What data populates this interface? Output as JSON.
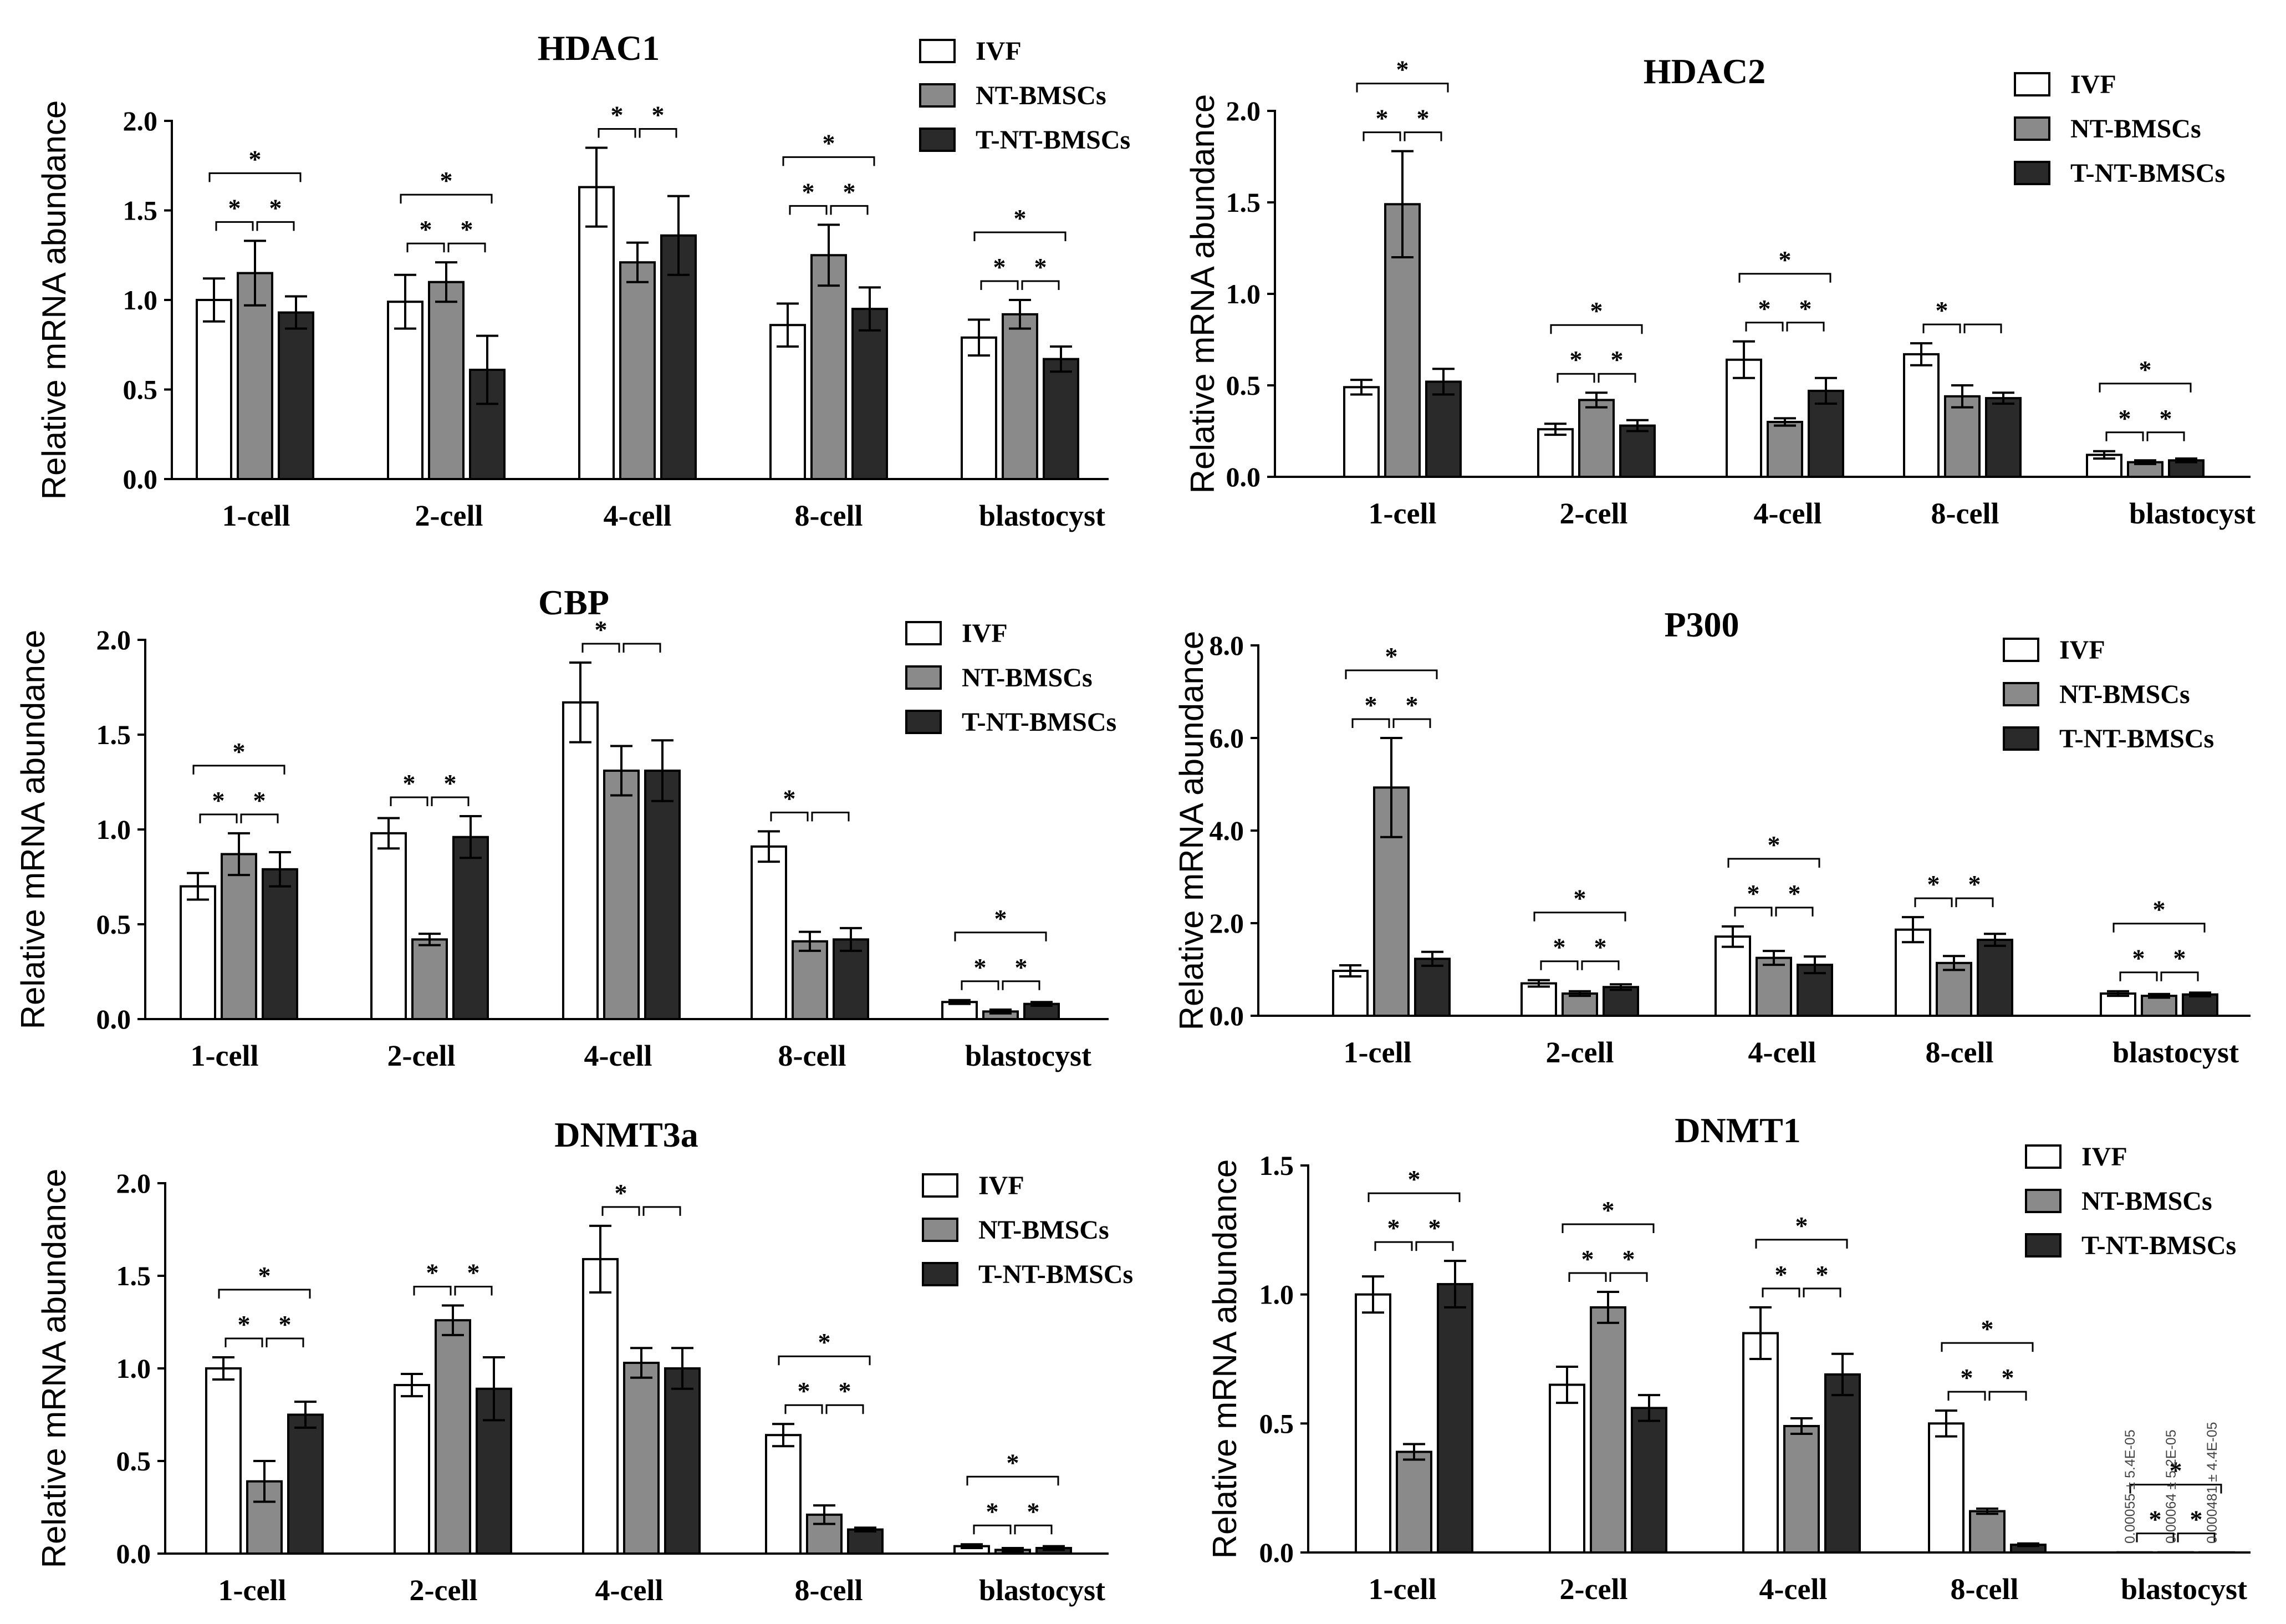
{
  "legend": [
    "IVF",
    "NT-BMSCs",
    "T-NT-BMSCs"
  ],
  "colors": {
    "IVF": "#ffffff",
    "NT-BMSCs": "#8a8a8a",
    "T-NT-BMSCs": "#2a2a2a",
    "axis": "#000000"
  },
  "categories": [
    "1-cell",
    "2-cell",
    "4-cell",
    "8-cell",
    "blastocyst"
  ],
  "ylabel": "Relative mRNA abundance",
  "chart_data": [
    {
      "type": "bar",
      "title": "HDAC1",
      "ylim": [
        0,
        2.0
      ],
      "yticks": [
        "0.0",
        "0.5",
        "1.0",
        "1.5",
        "2.0"
      ],
      "ytick_values": [
        0,
        0.5,
        1.0,
        1.5,
        2.0
      ],
      "series": [
        {
          "name": "IVF",
          "values": [
            1.0,
            0.99,
            1.63,
            0.86,
            0.79
          ],
          "errors": [
            0.12,
            0.15,
            0.22,
            0.12,
            0.1
          ]
        },
        {
          "name": "NT-BMSCs",
          "values": [
            1.15,
            1.1,
            1.21,
            1.25,
            0.92
          ],
          "errors": [
            0.18,
            0.11,
            0.11,
            0.17,
            0.08
          ]
        },
        {
          "name": "T-NT-BMSCs",
          "values": [
            0.93,
            0.61,
            1.36,
            0.95,
            0.67
          ],
          "errors": [
            0.09,
            0.19,
            0.22,
            0.12,
            0.07
          ]
        }
      ],
      "significance": [
        {
          "category": "1-cell",
          "pairs": [
            [
              "IVF",
              "NT-BMSCs",
              "*"
            ],
            [
              "NT-BMSCs",
              "T-NT-BMSCs",
              "*"
            ],
            [
              "IVF",
              "T-NT-BMSCs",
              "*"
            ]
          ]
        },
        {
          "category": "2-cell",
          "pairs": [
            [
              "IVF",
              "NT-BMSCs",
              "*"
            ],
            [
              "NT-BMSCs",
              "T-NT-BMSCs",
              "*"
            ],
            [
              "IVF",
              "T-NT-BMSCs",
              "*"
            ]
          ]
        },
        {
          "category": "4-cell",
          "pairs": [
            [
              "IVF",
              "NT-BMSCs",
              "*"
            ],
            [
              "NT-BMSCs",
              "T-NT-BMSCs",
              "*"
            ]
          ]
        },
        {
          "category": "8-cell",
          "pairs": [
            [
              "IVF",
              "NT-BMSCs",
              "*"
            ],
            [
              "NT-BMSCs",
              "T-NT-BMSCs",
              "*"
            ],
            [
              "IVF",
              "T-NT-BMSCs",
              "*"
            ]
          ]
        },
        {
          "category": "blastocyst",
          "pairs": [
            [
              "IVF",
              "NT-BMSCs",
              "*"
            ],
            [
              "NT-BMSCs",
              "T-NT-BMSCs",
              "*"
            ],
            [
              "IVF",
              "T-NT-BMSCs",
              "*"
            ]
          ]
        }
      ]
    },
    {
      "type": "bar",
      "title": "HDAC2",
      "ylim": [
        0,
        2.0
      ],
      "yticks": [
        "0.0",
        "0.5",
        "1.0",
        "1.5",
        "2.0"
      ],
      "ytick_values": [
        0,
        0.5,
        1.0,
        1.5,
        2.0
      ],
      "series": [
        {
          "name": "IVF",
          "values": [
            0.49,
            0.26,
            0.64,
            0.67,
            0.12
          ],
          "errors": [
            0.04,
            0.03,
            0.1,
            0.06,
            0.02
          ]
        },
        {
          "name": "NT-BMSCs",
          "values": [
            1.49,
            0.42,
            0.3,
            0.44,
            0.08
          ],
          "errors": [
            0.29,
            0.04,
            0.02,
            0.06,
            0.01
          ]
        },
        {
          "name": "T-NT-BMSCs",
          "values": [
            0.52,
            0.28,
            0.47,
            0.43,
            0.09
          ],
          "errors": [
            0.07,
            0.03,
            0.07,
            0.03,
            0.01
          ]
        }
      ],
      "significance": [
        {
          "category": "1-cell",
          "pairs": [
            [
              "IVF",
              "NT-BMSCs",
              "*"
            ],
            [
              "NT-BMSCs",
              "T-NT-BMSCs",
              "*"
            ],
            [
              "IVF",
              "T-NT-BMSCs",
              "*"
            ]
          ]
        },
        {
          "category": "2-cell",
          "pairs": [
            [
              "IVF",
              "NT-BMSCs",
              "*"
            ],
            [
              "NT-BMSCs",
              "T-NT-BMSCs",
              "*"
            ],
            [
              "IVF",
              "T-NT-BMSCs",
              "*"
            ]
          ]
        },
        {
          "category": "4-cell",
          "pairs": [
            [
              "IVF",
              "NT-BMSCs",
              "*"
            ],
            [
              "NT-BMSCs",
              "T-NT-BMSCs",
              "*"
            ],
            [
              "IVF",
              "T-NT-BMSCs",
              "*"
            ]
          ]
        },
        {
          "category": "8-cell",
          "pairs": [
            [
              "NT-BMSCs",
              "T-NT-BMSCs",
              ""
            ],
            [
              "IVF",
              "NT-BMSCs",
              "*"
            ]
          ]
        },
        {
          "category": "blastocyst",
          "pairs": [
            [
              "IVF",
              "NT-BMSCs",
              "*"
            ],
            [
              "NT-BMSCs",
              "T-NT-BMSCs",
              "*"
            ],
            [
              "IVF",
              "T-NT-BMSCs",
              "*"
            ]
          ]
        }
      ]
    },
    {
      "type": "bar",
      "title": "CBP",
      "ylim": [
        0,
        2.0
      ],
      "yticks": [
        "0.0",
        "0.5",
        "1.0",
        "1.5",
        "2.0"
      ],
      "ytick_values": [
        0,
        0.5,
        1.0,
        1.5,
        2.0
      ],
      "series": [
        {
          "name": "IVF",
          "values": [
            0.7,
            0.98,
            1.67,
            0.91,
            0.09
          ],
          "errors": [
            0.07,
            0.08,
            0.21,
            0.08,
            0.01
          ]
        },
        {
          "name": "NT-BMSCs",
          "values": [
            0.87,
            0.42,
            1.31,
            0.41,
            0.04
          ],
          "errors": [
            0.11,
            0.03,
            0.13,
            0.05,
            0.01
          ]
        },
        {
          "name": "T-NT-BMSCs",
          "values": [
            0.79,
            0.96,
            1.31,
            0.42,
            0.08
          ],
          "errors": [
            0.09,
            0.11,
            0.16,
            0.06,
            0.01
          ]
        }
      ],
      "significance": [
        {
          "category": "1-cell",
          "pairs": [
            [
              "IVF",
              "NT-BMSCs",
              "*"
            ],
            [
              "NT-BMSCs",
              "T-NT-BMSCs",
              "*"
            ],
            [
              "IVF",
              "T-NT-BMSCs",
              "*"
            ]
          ]
        },
        {
          "category": "2-cell",
          "pairs": [
            [
              "IVF",
              "NT-BMSCs",
              "*"
            ],
            [
              "NT-BMSCs",
              "T-NT-BMSCs",
              "*"
            ]
          ]
        },
        {
          "category": "4-cell",
          "pairs": [
            [
              "IVF",
              "NT-BMSCs",
              "*"
            ],
            [
              "NT-BMSCs",
              "T-NT-BMSCs",
              ""
            ]
          ]
        },
        {
          "category": "8-cell",
          "pairs": [
            [
              "IVF",
              "NT-BMSCs",
              "*"
            ],
            [
              "NT-BMSCs",
              "T-NT-BMSCs",
              ""
            ]
          ]
        },
        {
          "category": "blastocyst",
          "pairs": [
            [
              "IVF",
              "NT-BMSCs",
              "*"
            ],
            [
              "NT-BMSCs",
              "T-NT-BMSCs",
              "*"
            ],
            [
              "IVF",
              "T-NT-BMSCs",
              "*"
            ]
          ]
        }
      ]
    },
    {
      "type": "bar",
      "title": "P300",
      "ylim": [
        0,
        8.0
      ],
      "yticks": [
        "0.0",
        "2.0",
        "4.0",
        "6.0",
        "8.0"
      ],
      "ytick_values": [
        0,
        2.0,
        4.0,
        6.0,
        8.0
      ],
      "series": [
        {
          "name": "IVF",
          "values": [
            0.97,
            0.7,
            1.71,
            1.86,
            0.48
          ],
          "errors": [
            0.12,
            0.07,
            0.22,
            0.27,
            0.05
          ]
        },
        {
          "name": "NT-BMSCs",
          "values": [
            4.93,
            0.48,
            1.25,
            1.14,
            0.43
          ],
          "errors": [
            1.07,
            0.05,
            0.15,
            0.15,
            0.04
          ]
        },
        {
          "name": "T-NT-BMSCs",
          "values": [
            1.23,
            0.62,
            1.1,
            1.64,
            0.46
          ],
          "errors": [
            0.15,
            0.06,
            0.18,
            0.13,
            0.04
          ]
        }
      ],
      "significance": [
        {
          "category": "1-cell",
          "pairs": [
            [
              "IVF",
              "NT-BMSCs",
              "*"
            ],
            [
              "NT-BMSCs",
              "T-NT-BMSCs",
              "*"
            ],
            [
              "IVF",
              "T-NT-BMSCs",
              "*"
            ]
          ]
        },
        {
          "category": "2-cell",
          "pairs": [
            [
              "IVF",
              "NT-BMSCs",
              "*"
            ],
            [
              "NT-BMSCs",
              "T-NT-BMSCs",
              "*"
            ],
            [
              "IVF",
              "T-NT-BMSCs",
              "*"
            ]
          ]
        },
        {
          "category": "4-cell",
          "pairs": [
            [
              "IVF",
              "NT-BMSCs",
              "*"
            ],
            [
              "NT-BMSCs",
              "T-NT-BMSCs",
              "*"
            ],
            [
              "IVF",
              "T-NT-BMSCs",
              "*"
            ]
          ]
        },
        {
          "category": "8-cell",
          "pairs": [
            [
              "IVF",
              "NT-BMSCs",
              "*"
            ],
            [
              "NT-BMSCs",
              "T-NT-BMSCs",
              "*"
            ]
          ]
        },
        {
          "category": "blastocyst",
          "pairs": [
            [
              "IVF",
              "NT-BMSCs",
              "*"
            ],
            [
              "NT-BMSCs",
              "T-NT-BMSCs",
              "*"
            ],
            [
              "IVF",
              "T-NT-BMSCs",
              "*"
            ]
          ]
        }
      ]
    },
    {
      "type": "bar",
      "title": "DNMT3a",
      "ylim": [
        0,
        2.0
      ],
      "yticks": [
        "0.0",
        "0.5",
        "1.0",
        "1.5",
        "2.0"
      ],
      "ytick_values": [
        0,
        0.5,
        1.0,
        1.5,
        2.0
      ],
      "series": [
        {
          "name": "IVF",
          "values": [
            1.0,
            0.91,
            1.59,
            0.64,
            0.04
          ],
          "errors": [
            0.06,
            0.06,
            0.18,
            0.06,
            0.01
          ]
        },
        {
          "name": "NT-BMSCs",
          "values": [
            0.39,
            1.26,
            1.03,
            0.21,
            0.02
          ],
          "errors": [
            0.11,
            0.08,
            0.08,
            0.05,
            0.01
          ]
        },
        {
          "name": "T-NT-BMSCs",
          "values": [
            0.75,
            0.89,
            1.0,
            0.13,
            0.03
          ],
          "errors": [
            0.07,
            0.17,
            0.11,
            0.01,
            0.01
          ]
        }
      ],
      "significance": [
        {
          "category": "1-cell",
          "pairs": [
            [
              "IVF",
              "NT-BMSCs",
              "*"
            ],
            [
              "NT-BMSCs",
              "T-NT-BMSCs",
              "*"
            ],
            [
              "IVF",
              "T-NT-BMSCs",
              "*"
            ]
          ]
        },
        {
          "category": "2-cell",
          "pairs": [
            [
              "IVF",
              "NT-BMSCs",
              "*"
            ],
            [
              "NT-BMSCs",
              "T-NT-BMSCs",
              "*"
            ]
          ]
        },
        {
          "category": "4-cell",
          "pairs": [
            [
              "IVF",
              "NT-BMSCs",
              "*"
            ],
            [
              "NT-BMSCs",
              "T-NT-BMSCs",
              ""
            ]
          ]
        },
        {
          "category": "8-cell",
          "pairs": [
            [
              "IVF",
              "NT-BMSCs",
              "*"
            ],
            [
              "NT-BMSCs",
              "T-NT-BMSCs",
              "*"
            ],
            [
              "IVF",
              "T-NT-BMSCs",
              "*"
            ]
          ]
        },
        {
          "category": "blastocyst",
          "pairs": [
            [
              "IVF",
              "NT-BMSCs",
              "*"
            ],
            [
              "NT-BMSCs",
              "T-NT-BMSCs",
              "*"
            ],
            [
              "IVF",
              "T-NT-BMSCs",
              "*"
            ]
          ]
        }
      ]
    },
    {
      "type": "bar",
      "title": "DNMT1",
      "ylim": [
        0,
        1.5
      ],
      "yticks": [
        "0.0",
        "0.5",
        "1.0",
        "1.5"
      ],
      "ytick_values": [
        0,
        0.5,
        1.0,
        1.5
      ],
      "series": [
        {
          "name": "IVF",
          "values": [
            1.0,
            0.65,
            0.85,
            0.5,
            0.00055
          ],
          "errors": [
            0.07,
            0.07,
            0.1,
            0.05,
            5.4e-05
          ]
        },
        {
          "name": "NT-BMSCs",
          "values": [
            0.39,
            0.95,
            0.49,
            0.16,
            0.00064
          ],
          "errors": [
            0.03,
            0.06,
            0.03,
            0.01,
            5.2e-05
          ]
        },
        {
          "name": "T-NT-BMSCs",
          "values": [
            1.04,
            0.56,
            0.69,
            0.03,
            0.000481
          ],
          "errors": [
            0.09,
            0.05,
            0.08,
            0.005,
            4.4e-05
          ]
        }
      ],
      "value_notes": {
        "category": "blastocyst",
        "labels": [
          "0.00055 ± 5.4E-05",
          "0.00064 ± 5.2E-05",
          "0.000481 ± 4.4E-05"
        ]
      },
      "significance": [
        {
          "category": "1-cell",
          "pairs": [
            [
              "IVF",
              "NT-BMSCs",
              "*"
            ],
            [
              "NT-BMSCs",
              "T-NT-BMSCs",
              "*"
            ],
            [
              "IVF",
              "T-NT-BMSCs",
              "*"
            ]
          ]
        },
        {
          "category": "2-cell",
          "pairs": [
            [
              "IVF",
              "NT-BMSCs",
              "*"
            ],
            [
              "NT-BMSCs",
              "T-NT-BMSCs",
              "*"
            ],
            [
              "IVF",
              "T-NT-BMSCs",
              "*"
            ]
          ]
        },
        {
          "category": "4-cell",
          "pairs": [
            [
              "IVF",
              "NT-BMSCs",
              "*"
            ],
            [
              "NT-BMSCs",
              "T-NT-BMSCs",
              "*"
            ],
            [
              "IVF",
              "T-NT-BMSCs",
              "*"
            ]
          ]
        },
        {
          "category": "8-cell",
          "pairs": [
            [
              "IVF",
              "NT-BMSCs",
              "*"
            ],
            [
              "NT-BMSCs",
              "T-NT-BMSCs",
              "*"
            ],
            [
              "IVF",
              "T-NT-BMSCs",
              "*"
            ]
          ]
        },
        {
          "category": "blastocyst",
          "pairs": [
            [
              "IVF",
              "NT-BMSCs",
              "*"
            ],
            [
              "NT-BMSCs",
              "T-NT-BMSCs",
              "*"
            ],
            [
              "IVF",
              "T-NT-BMSCs",
              "*"
            ]
          ]
        }
      ]
    }
  ]
}
